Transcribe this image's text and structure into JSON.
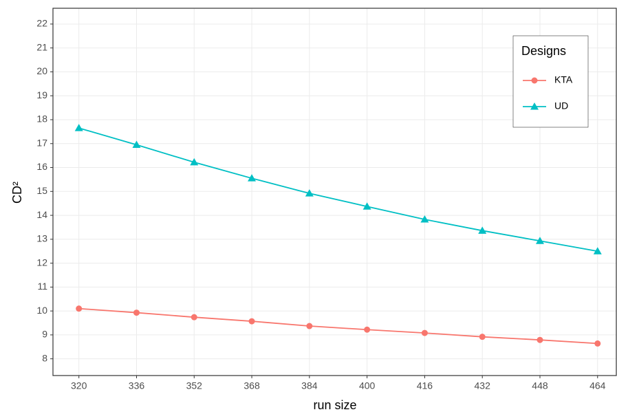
{
  "chart_data": {
    "type": "line",
    "x_label": "run size",
    "y_label": "CD²",
    "x": [
      320,
      336,
      352,
      368,
      384,
      400,
      416,
      432,
      448,
      464
    ],
    "series": [
      {
        "name": "KTA",
        "color": "#F8766D",
        "marker": "circle",
        "values": [
          10.1,
          9.93,
          9.74,
          9.57,
          9.37,
          9.22,
          9.08,
          8.92,
          8.79,
          8.64
        ]
      },
      {
        "name": "UD",
        "color": "#00BFC4",
        "marker": "triangle",
        "values": [
          17.65,
          16.95,
          16.22,
          15.55,
          14.92,
          14.37,
          13.83,
          13.36,
          12.93,
          12.5
        ]
      }
    ],
    "xlim": [
      312.8,
      469.2
    ],
    "ylim": [
      7.3,
      22.66
    ],
    "xticks": [
      320,
      336,
      352,
      368,
      384,
      400,
      416,
      432,
      448,
      464
    ],
    "yticks": [
      8,
      9,
      10,
      11,
      12,
      13,
      14,
      15,
      16,
      17,
      18,
      19,
      20,
      21,
      22
    ],
    "grid": true,
    "legend_title": "Designs",
    "legend_position": "top-right"
  }
}
